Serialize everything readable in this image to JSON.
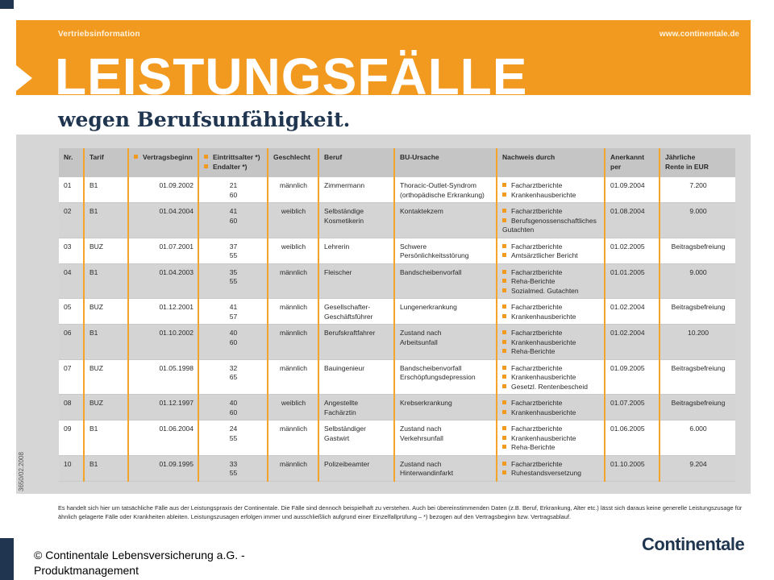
{
  "banner": {
    "tag": "Vertriebsinformation",
    "url": "www.continentale.de",
    "title": "LEISTUNGSFÄLLE"
  },
  "subtitle": "wegen Berufsunfähigkeit.",
  "side_code": "3650/02.2008",
  "table": {
    "headers": {
      "nr": "Nr.",
      "tarif": "Tarif",
      "vertragsbeginn": "Vertragsbeginn",
      "eintrittsalter": "Eintrittsalter *)",
      "endalter": "Endalter *)",
      "geschlecht": "Geschlecht",
      "beruf": "Beruf",
      "ursache": "BU-Ursache",
      "nachweis": "Nachweis durch",
      "anerkannt_l1": "Anerkannt",
      "anerkannt_l2": "per",
      "rente_l1": "Jährliche",
      "rente_l2": "Rente in EUR"
    },
    "rows": [
      {
        "nr": "01",
        "tarif": "B1",
        "beginn": "01.09.2002",
        "eintritt": "21",
        "end": "60",
        "geschlecht": "männlich",
        "beruf": [
          "Zimmermann"
        ],
        "ursache": [
          "Thoracic-Outlet-Syndrom",
          "(orthopädische Erkrankung)"
        ],
        "nachweis": [
          "Facharztberichte",
          "Krankenhausberichte"
        ],
        "anerkannt": "01.09.2004",
        "rente": "7.200"
      },
      {
        "nr": "02",
        "tarif": "B1",
        "beginn": "01.04.2004",
        "eintritt": "41",
        "end": "60",
        "geschlecht": "weiblich",
        "beruf": [
          "Selbständige",
          "Kosmetikerin"
        ],
        "ursache": [
          "Kontaktekzem"
        ],
        "nachweis": [
          "Facharztberichte",
          "Berufsgenossenschaftliches Gutachten"
        ],
        "anerkannt": "01.08.2004",
        "rente": "9.000"
      },
      {
        "nr": "03",
        "tarif": "BUZ",
        "beginn": "01.07.2001",
        "eintritt": "37",
        "end": "55",
        "geschlecht": "weiblich",
        "beruf": [
          "Lehrerin"
        ],
        "ursache": [
          "Schwere",
          "Persönlichkeitsstörung"
        ],
        "nachweis": [
          "Facharztberichte",
          "Amtsärztlicher Bericht"
        ],
        "anerkannt": "01.02.2005",
        "rente": "Beitragsbefreiung"
      },
      {
        "nr": "04",
        "tarif": "B1",
        "beginn": "01.04.2003",
        "eintritt": "35",
        "end": "55",
        "geschlecht": "männlich",
        "beruf": [
          "Fleischer"
        ],
        "ursache": [
          "Bandscheibenvorfall"
        ],
        "nachweis": [
          "Facharztberichte",
          "Reha-Berichte",
          "Sozialmed. Gutachten"
        ],
        "anerkannt": "01.01.2005",
        "rente": "9.000"
      },
      {
        "nr": "05",
        "tarif": "BUZ",
        "beginn": "01.12.2001",
        "eintritt": "41",
        "end": "57",
        "geschlecht": "männlich",
        "beruf": [
          "Gesellschafter-",
          "Geschäftsführer"
        ],
        "ursache": [
          "Lungenerkrankung"
        ],
        "nachweis": [
          "Facharztberichte",
          "Krankenhausberichte"
        ],
        "anerkannt": "01.02.2004",
        "rente": "Beitragsbefreiung"
      },
      {
        "nr": "06",
        "tarif": "B1",
        "beginn": "01.10.2002",
        "eintritt": "40",
        "end": "60",
        "geschlecht": "männlich",
        "beruf": [
          "Berufskraftfahrer"
        ],
        "ursache": [
          "Zustand nach",
          "Arbeitsunfall"
        ],
        "nachweis": [
          "Facharztberichte",
          "Krankenhausberichte",
          "Reha-Berichte"
        ],
        "anerkannt": "01.02.2004",
        "rente": "10.200"
      },
      {
        "nr": "07",
        "tarif": "BUZ",
        "beginn": "01.05.1998",
        "eintritt": "32",
        "end": "65",
        "geschlecht": "männlich",
        "beruf": [
          "Bauingenieur"
        ],
        "ursache": [
          "Bandscheibenvorfall",
          "Erschöpfungsdepression"
        ],
        "nachweis": [
          "Facharztberichte",
          "Krankenhausberichte",
          "Gesetzl. Rentenbescheid"
        ],
        "anerkannt": "01.09.2005",
        "rente": "Beitragsbefreiung"
      },
      {
        "nr": "08",
        "tarif": "BUZ",
        "beginn": "01.12.1997",
        "eintritt": "40",
        "end": "60",
        "geschlecht": "weiblich",
        "beruf": [
          "Angestellte",
          "Fachärztin"
        ],
        "ursache": [
          "Krebserkrankung"
        ],
        "nachweis": [
          "Facharztberichte",
          "Krankenhausberichte"
        ],
        "anerkannt": "01.07.2005",
        "rente": "Beitragsbefreiung"
      },
      {
        "nr": "09",
        "tarif": "B1",
        "beginn": "01.06.2004",
        "eintritt": "24",
        "end": "55",
        "geschlecht": "männlich",
        "beruf": [
          "Selbständiger",
          "Gastwirt"
        ],
        "ursache": [
          "Zustand nach",
          "Verkehrsunfall"
        ],
        "nachweis": [
          "Facharztberichte",
          "Krankenhausberichte",
          "Reha-Berichte"
        ],
        "anerkannt": "01.06.2005",
        "rente": "6.000"
      },
      {
        "nr": "10",
        "tarif": "B1",
        "beginn": "01.09.1995",
        "eintritt": "33",
        "end": "55",
        "geschlecht": "männlich",
        "beruf": [
          "Polizeibeamter"
        ],
        "ursache": [
          "Zustand nach",
          "Hinterwandinfarkt"
        ],
        "nachweis": [
          "Facharztberichte",
          "Ruhestandsversetzung"
        ],
        "anerkannt": "01.10.2005",
        "rente": "9.204"
      }
    ]
  },
  "note": "Es handelt sich hier um tatsächliche Fälle aus der Leistungspraxis der Continentale. Die Fälle sind dennoch beispielhaft zu verstehen. Auch bei übereinstimmenden Daten (z.B. Beruf, Erkrankung, Alter etc.) lässt sich daraus keine generelle Leistungszusage für ähnlich gelagerte Fälle oder Krankheiten ableiten. Leistungszusagen erfolgen immer und ausschließlich aufgrund einer Einzelfallprüfung – *) bezogen auf den Vertragsbeginn bzw. Vertragsablauf.",
  "footer": {
    "line1": "© Continentale Lebensversicherung a.G. -",
    "line2": "Produktmanagement"
  },
  "logo": "Continentale",
  "colors": {
    "accent": "#f29a1f",
    "brand": "#1f3550"
  }
}
